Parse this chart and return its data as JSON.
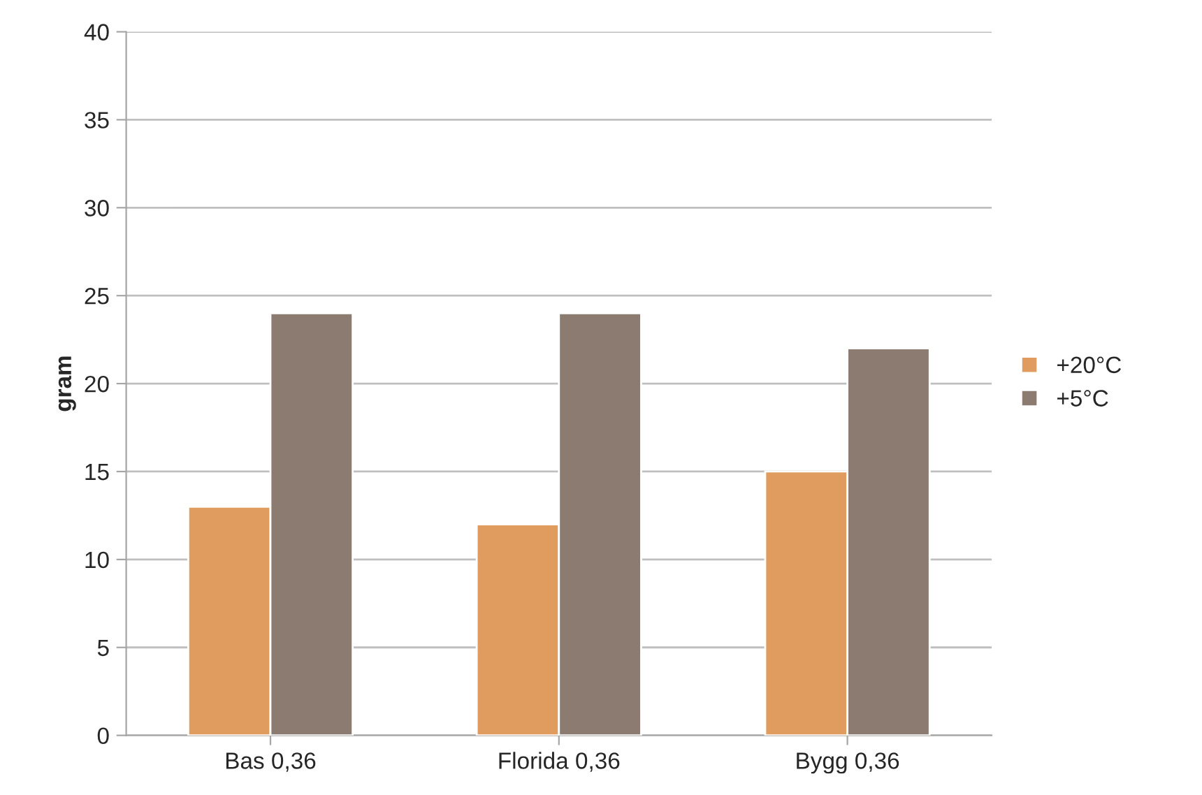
{
  "chart_data": {
    "type": "bar",
    "ylabel": "gram",
    "categories": [
      "Bas 0,36",
      "Florida 0,36",
      "Bygg 0,36"
    ],
    "series": [
      {
        "name": "+20°C",
        "color": "#e09c5f",
        "values": [
          13,
          12,
          15
        ]
      },
      {
        "name": "+5°C",
        "color": "#8b7b70",
        "values": [
          24,
          24,
          22
        ]
      }
    ],
    "ylim": [
      0,
      40
    ],
    "yticks": [
      0,
      5,
      10,
      15,
      20,
      25,
      30,
      35,
      40
    ],
    "grid": "y",
    "legend": "right"
  }
}
